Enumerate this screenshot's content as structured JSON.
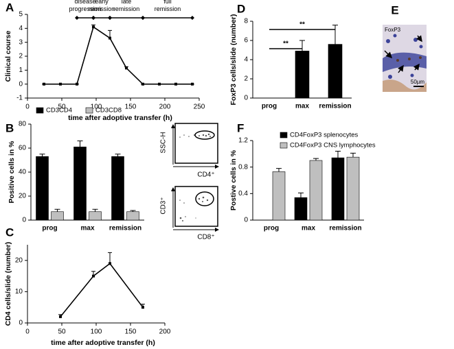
{
  "chart_data": [
    {
      "type": "line",
      "panel": "A",
      "xlabel": "time after adoptive transfer (h)",
      "ylabel": "Clinical course",
      "x": [
        24,
        48,
        72,
        96,
        120,
        144,
        168,
        192,
        216,
        240
      ],
      "values": [
        0,
        0,
        0,
        4.1,
        3.3,
        1.15,
        0,
        0,
        0,
        0
      ],
      "errors": [
        0,
        0,
        0,
        0.15,
        0.55,
        0.1,
        0,
        0,
        0,
        0
      ],
      "color": "#000000",
      "xlim": [
        0,
        250
      ],
      "xticks": [
        0,
        50,
        100,
        150,
        200,
        250
      ],
      "ylim": [
        -1,
        5
      ],
      "yticks": [
        -1,
        0,
        1,
        2,
        3,
        4,
        5
      ],
      "phases": [
        {
          "label": "disease progression",
          "range": [
            72,
            96
          ]
        },
        {
          "label": "early remission",
          "range": [
            96,
            120
          ]
        },
        {
          "label": "late remission",
          "range": [
            120,
            168
          ]
        },
        {
          "label": "full remission",
          "range": [
            168,
            240
          ]
        }
      ]
    },
    {
      "type": "bar",
      "panel": "B",
      "ylabel": "Positive cells in %",
      "categories": [
        "prog",
        "max",
        "remission"
      ],
      "series": [
        {
          "name": "CD3CD4",
          "color": "#000000",
          "values": [
            53,
            61,
            53
          ],
          "errors": [
            2,
            5,
            2
          ]
        },
        {
          "name": "CD3CD8",
          "color": "#bfbfbf",
          "values": [
            7,
            7,
            7
          ],
          "errors": [
            2,
            2,
            1
          ]
        }
      ],
      "ylim": [
        0,
        80
      ],
      "yticks": [
        0,
        20,
        40,
        60,
        80
      ],
      "legend": "top"
    },
    {
      "type": "line",
      "panel": "C",
      "xlabel": "time after adoptive transfer (h)",
      "ylabel": "CD4 cells/slide (number)",
      "x": [
        48,
        96,
        120,
        168
      ],
      "values": [
        2,
        15,
        19,
        5
      ],
      "errors": [
        0.7,
        1.5,
        3.5,
        1
      ],
      "color": "#000000",
      "xlim": [
        0,
        200
      ],
      "xticks": [
        0,
        50,
        100,
        150,
        200
      ],
      "ylim": [
        0,
        25
      ],
      "yticks": [
        0,
        10,
        20
      ]
    },
    {
      "type": "bar",
      "panel": "D",
      "ylabel": "FoxP3 cells/slide (number)",
      "categories": [
        "prog",
        "max",
        "remission"
      ],
      "series": [
        {
          "color": "#000000",
          "values": [
            0,
            4.9,
            5.6
          ],
          "errors": [
            0,
            1.1,
            2
          ]
        }
      ],
      "ylim": [
        0,
        8
      ],
      "yticks": [
        0,
        2,
        4,
        6,
        8
      ],
      "annotations": [
        "**",
        "**"
      ]
    },
    {
      "type": "bar",
      "panel": "F",
      "ylabel": "Postive cells in %",
      "categories": [
        "prog",
        "max",
        "remission"
      ],
      "series": [
        {
          "name": "CD4FoxP3 splenocytes",
          "color": "#000000",
          "values": [
            0,
            0.34,
            0.94
          ],
          "errors": [
            0,
            0.07,
            0.1
          ]
        },
        {
          "name": "CD4FoxP3 CNS lymphocytes",
          "color": "#bfbfbf",
          "values": [
            0.73,
            0.9,
            0.95
          ],
          "errors": [
            0.05,
            0.03,
            0.06
          ]
        }
      ],
      "ylim": [
        0,
        1.2
      ],
      "yticks": [
        0,
        0.4,
        0.8,
        1.2
      ],
      "legend": "top-left"
    }
  ],
  "flow": {
    "labels": [
      "SSC-H",
      "CD4⁺",
      "CD3⁺",
      "CD8⁺"
    ]
  },
  "micrograph": {
    "panel": "E",
    "label": "FoxP3",
    "scale": "50µm"
  }
}
